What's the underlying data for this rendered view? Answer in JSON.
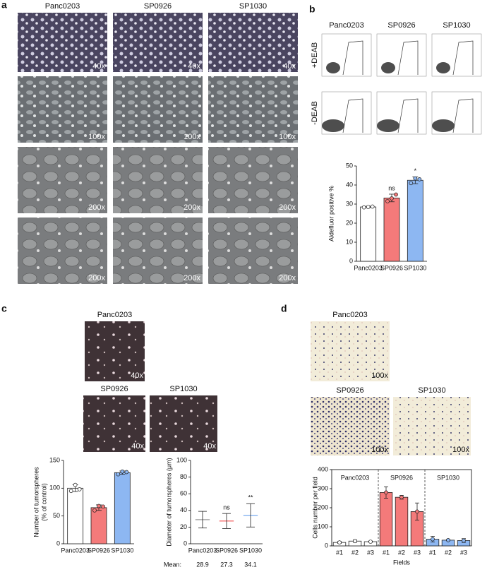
{
  "panel_a": {
    "label": "a",
    "columns": [
      "Panc0203",
      "SP0926",
      "SP1030"
    ],
    "magnifications": [
      [
        "40x",
        "40x",
        "40x"
      ],
      [
        "100x",
        "100x",
        "100x"
      ],
      [
        "200x",
        "200x",
        "200x"
      ],
      [
        "200x",
        "200x",
        "200x"
      ]
    ]
  },
  "panel_b": {
    "label": "b",
    "columns": [
      "Panc0203",
      "SP0926",
      "SP1030"
    ],
    "rows": [
      "+DEAB",
      "-DEAB"
    ]
  },
  "panel_c": {
    "label": "c",
    "images": [
      {
        "name": "Panc0203",
        "magnification": "40x"
      },
      {
        "name": "SP0926",
        "magnification": "40x"
      },
      {
        "name": "SP1030",
        "magnification": "40x"
      }
    ]
  },
  "panel_d": {
    "label": "d",
    "images": [
      {
        "name": "Panc0203",
        "magnification": "100x"
      },
      {
        "name": "SP0926",
        "magnification": "100x"
      },
      {
        "name": "SP1030",
        "magnification": "100x"
      }
    ]
  },
  "chart_data": [
    {
      "type": "bar",
      "y_label": [
        "Aldefluor positive %"
      ],
      "categories": [
        "Panc0203",
        "SP0926",
        "SP1030"
      ],
      "values": [
        28.5,
        33.2,
        42.5
      ],
      "errors": [
        0.3,
        2,
        1.8
      ],
      "points": [
        [
          28.3,
          28.5,
          28.7
        ],
        [
          31.5,
          33,
          35
        ],
        [
          41,
          43.5,
          43
        ]
      ],
      "colors": [
        "#ffffff",
        "#f47a7a",
        "#8db7f2"
      ],
      "annotations": [
        null,
        "ns",
        "*"
      ],
      "ylim": [
        0,
        50
      ],
      "yticks": [
        0,
        10,
        20,
        30,
        40,
        50
      ]
    },
    {
      "type": "bar",
      "y_label": [
        "Number of tumorspheres",
        "(% of control)"
      ],
      "categories": [
        "Panc0203",
        "SP0926",
        "SP1030"
      ],
      "values": [
        100,
        65,
        128
      ],
      "errors": [
        6,
        5,
        3
      ],
      "points": [
        [
          95,
          106,
          98
        ],
        [
          60,
          68,
          67
        ],
        [
          125,
          130,
          129
        ]
      ],
      "colors": [
        "#ffffff",
        "#f47a7a",
        "#8db7f2"
      ],
      "ylim": [
        0,
        150
      ],
      "yticks": [
        0,
        50,
        100,
        150
      ]
    },
    {
      "type": "dot",
      "y_label": [
        "Diameter of tumorspheres (μm)"
      ],
      "categories": [
        "Panc0203",
        "SP0926",
        "SP1030"
      ],
      "values": [
        28.9,
        27.3,
        34.1
      ],
      "errors": [
        10,
        9,
        14
      ],
      "colors": [
        "#aaaaaa",
        "#f47a7a",
        "#8db7f2"
      ],
      "annotations": [
        null,
        "ns",
        "**"
      ],
      "mean_label": "Mean:",
      "value_labels": [
        "28.9",
        "27.3",
        "34.1"
      ],
      "ylim": [
        0,
        100
      ],
      "yticks": [
        0,
        20,
        40,
        60,
        80,
        100
      ]
    },
    {
      "type": "grouped_bar",
      "y_label": [
        "Cells number per field"
      ],
      "x_label": "Fields",
      "series": [
        {
          "name": "Panc0203",
          "color": "#ffffff",
          "categories": [
            "#1",
            "#2",
            "#3"
          ],
          "values": [
            18,
            25,
            22
          ],
          "errors": [
            5,
            6,
            3
          ]
        },
        {
          "name": "SP0926",
          "color": "#f47a7a",
          "categories": [
            "#1",
            "#2",
            "#3"
          ],
          "values": [
            280,
            255,
            180
          ],
          "errors": [
            30,
            10,
            45
          ]
        },
        {
          "name": "SP1030",
          "color": "#8db7f2",
          "categories": [
            "#1",
            "#2",
            "#3"
          ],
          "values": [
            35,
            30,
            28
          ],
          "errors": [
            15,
            3,
            10
          ]
        }
      ],
      "ylim": [
        0,
        400
      ],
      "yticks": [
        0,
        100,
        200,
        300,
        400
      ]
    }
  ]
}
